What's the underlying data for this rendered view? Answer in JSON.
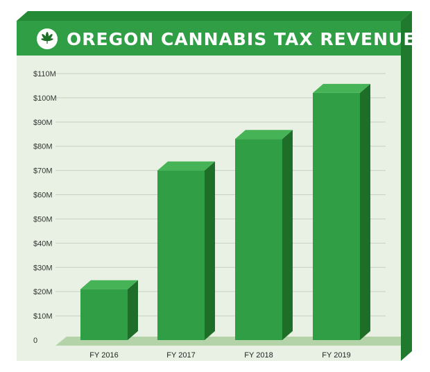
{
  "chart_data": {
    "type": "bar",
    "title": "OREGON CANNABIS TAX REVENUE",
    "categories": [
      "FY 2016",
      "FY 2017",
      "FY 2018",
      "FY 2019"
    ],
    "values": [
      21,
      70,
      83,
      102
    ],
    "units": "$M",
    "ylim": [
      0,
      110
    ],
    "yticks": [
      0,
      10,
      20,
      30,
      40,
      50,
      60,
      70,
      80,
      90,
      100,
      110
    ],
    "ytick_labels": [
      "0",
      "$10M",
      "$20M",
      "$30M",
      "$40M",
      "$50M",
      "$60M",
      "$70M",
      "$80M",
      "$90M",
      "$100M",
      "$110M"
    ],
    "xlabel": "",
    "ylabel": "",
    "grid": true,
    "legend": "none"
  },
  "header": {
    "icon": "cannabis-leaf-icon"
  },
  "colors": {
    "header_green": "#2f9e44",
    "frame_dark": "#1f7a2e",
    "frame_side": "#258a36",
    "panel_bg": "#e8f1e3",
    "bar_front": "#2f9e44",
    "bar_top": "#46b356",
    "bar_side": "#1e6e29",
    "floor": "#b5d3a9",
    "gridline": "#c8cfc5"
  }
}
